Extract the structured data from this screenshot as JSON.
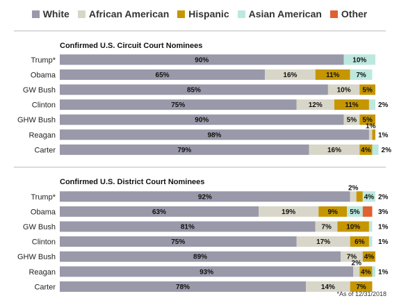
{
  "legend": [
    {
      "label": "White",
      "color": "#9999aa"
    },
    {
      "label": "African American",
      "color": "#d8d6c8"
    },
    {
      "label": "Hispanic",
      "color": "#c69600"
    },
    {
      "label": "Asian American",
      "color": "#bde8df"
    },
    {
      "label": "Other",
      "color": "#e06030"
    }
  ],
  "footnote": "*As of 12/31/2018",
  "chart_data": [
    {
      "type": "bar",
      "orientation": "horizontal",
      "stacked": true,
      "title": "Confirmed U.S. Circuit Court Nominees",
      "categories": [
        "Trump*",
        "Obama",
        "GW Bush",
        "Clinton",
        "GHW Bush",
        "Reagan",
        "Carter"
      ],
      "series": [
        {
          "name": "White",
          "values": [
            90,
            65,
            85,
            75,
            90,
            98,
            79
          ],
          "labels": [
            "90%",
            "65%",
            "85%",
            "75%",
            "90%",
            "98%",
            "79%"
          ]
        },
        {
          "name": "African American",
          "values": [
            0,
            16,
            10,
            12,
            5,
            1,
            16
          ],
          "labels": [
            "",
            "16%",
            "10%",
            "12%",
            "5%",
            "1%",
            "16%"
          ]
        },
        {
          "name": "Hispanic",
          "values": [
            0,
            11,
            5,
            11,
            5,
            1,
            4
          ],
          "labels": [
            "",
            "11%",
            "5%",
            "11%",
            "5%",
            "1%",
            "4%"
          ]
        },
        {
          "name": "Asian American",
          "values": [
            10,
            7,
            0,
            2,
            0,
            0,
            2
          ],
          "labels": [
            "10%",
            "7%",
            "",
            "2%",
            "",
            "",
            "2%"
          ]
        },
        {
          "name": "Other",
          "values": [
            0,
            0,
            0,
            0,
            0,
            0,
            0
          ],
          "labels": [
            "",
            "",
            "",
            "",
            "",
            "",
            ""
          ]
        }
      ],
      "xlim": [
        0,
        100
      ],
      "grid": false
    },
    {
      "type": "bar",
      "orientation": "horizontal",
      "stacked": true,
      "title": "Confirmed U.S. District Court Nominees",
      "categories": [
        "Trump*",
        "Obama",
        "GW Bush",
        "Clinton",
        "GHW Bush",
        "Reagan",
        "Carter"
      ],
      "series": [
        {
          "name": "White",
          "values": [
            92,
            63,
            81,
            75,
            89,
            93,
            78
          ],
          "labels": [
            "92%",
            "63%",
            "81%",
            "75%",
            "89%",
            "93%",
            "78%"
          ]
        },
        {
          "name": "African American",
          "values": [
            2,
            19,
            7,
            17,
            7,
            2,
            14
          ],
          "labels": [
            "2%",
            "19%",
            "7%",
            "17%",
            "7%",
            "2%",
            "14%"
          ]
        },
        {
          "name": "Hispanic",
          "values": [
            2,
            9,
            10,
            6,
            4,
            4,
            7
          ],
          "labels": [
            "2%",
            "9%",
            "10%",
            "6%",
            "4%",
            "4%",
            "7%"
          ]
        },
        {
          "name": "Asian American",
          "values": [
            4,
            5,
            1,
            1,
            0,
            1,
            0
          ],
          "labels": [
            "4%",
            "5%",
            "1%",
            "1%",
            "",
            "1%",
            ""
          ]
        },
        {
          "name": "Other",
          "values": [
            0,
            3,
            0,
            0,
            0,
            0,
            0
          ],
          "labels": [
            "",
            "3%",
            "",
            "",
            "",
            "",
            ""
          ]
        }
      ],
      "xlim": [
        0,
        100
      ],
      "grid": false
    }
  ]
}
